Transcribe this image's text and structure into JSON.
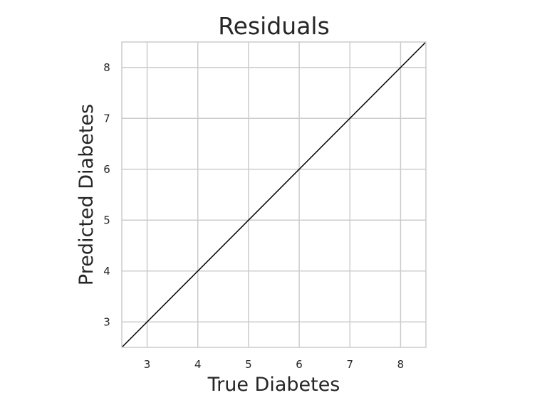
{
  "chart_data": {
    "type": "line",
    "title": "Residuals",
    "xlabel": "True Diabetes",
    "ylabel": "Predicted Diabetes",
    "xlim": [
      2.5,
      8.5
    ],
    "ylim": [
      2.5,
      8.5
    ],
    "xticks": [
      3,
      4,
      5,
      6,
      7,
      8
    ],
    "yticks": [
      3,
      4,
      5,
      6,
      7,
      8
    ],
    "grid": true,
    "series": [
      {
        "x": [
          2.5,
          8.5
        ],
        "y": [
          2.5,
          8.5
        ],
        "color": "#000000"
      }
    ],
    "colors": {
      "grid": "#cccccc",
      "frame": "#cccccc",
      "text": "#262626",
      "background": "#ffffff"
    }
  }
}
